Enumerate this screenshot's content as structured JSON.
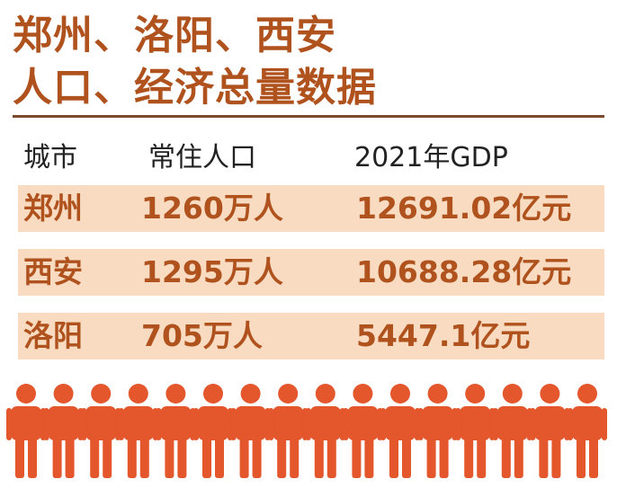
{
  "title": {
    "line1": "郑州、洛阳、西安",
    "line2": "人口、经济总量数据"
  },
  "colors": {
    "title": "#b0521e",
    "row_band": "#f8dbc0",
    "row_text": "#b0521e",
    "person_icon": "#e4562b",
    "rule": "#7a4a2a"
  },
  "chart_data": {
    "type": "table",
    "columns": [
      "城市",
      "常住人口",
      "2021年GDP"
    ],
    "rows": [
      {
        "city": "郑州",
        "population": "1260万人",
        "gdp": "12691.02亿元"
      },
      {
        "city": "西安",
        "population": "1295万人",
        "gdp": "10688.28亿元"
      },
      {
        "city": "洛阳",
        "population": "705万人",
        "gdp": "5447.1亿元"
      }
    ],
    "population_wan": [
      1260,
      1295,
      705
    ],
    "gdp_yi_yuan": [
      12691.02,
      10688.28,
      5447.1
    ]
  },
  "decoration": {
    "person_icon": "person-icon",
    "person_count": 16
  }
}
